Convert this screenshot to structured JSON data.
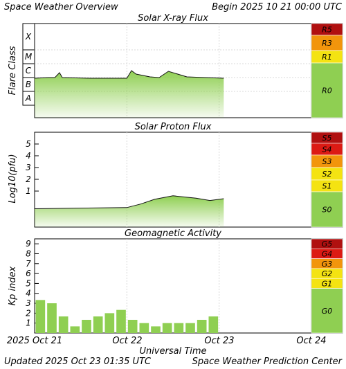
{
  "header": {
    "title": "Space Weather Overview",
    "begin": "Begin 2025 10 21 00:00 UTC"
  },
  "footer": {
    "updated": "Updated 2025 Oct 23 01:35 UTC",
    "center": "Space Weather Prediction Center"
  },
  "x_axis": {
    "title": "Universal Time",
    "ticks": [
      "2025 Oct 21",
      "Oct 22",
      "Oct 23",
      "Oct 24"
    ]
  },
  "colors": {
    "fill_green": "#8fcf52",
    "scale_green": "#8fcf52",
    "scale_yellow": "#f4e312",
    "scale_orange": "#f2950c",
    "scale_red": "#dc1a14",
    "scale_darkred": "#b01010",
    "grid": "#d8d8d8"
  },
  "chart_data": [
    {
      "type": "area",
      "title": "Solar X-ray Flux",
      "ylabel": "Flare Class",
      "y_ticks": [
        "X",
        "M",
        "C",
        "B",
        "A"
      ],
      "x_range_days": [
        0,
        3
      ],
      "x": [
        0,
        0.15,
        0.22,
        0.27,
        0.3,
        0.6,
        0.85,
        1.0,
        1.05,
        1.1,
        1.25,
        1.35,
        1.45,
        1.65,
        1.85,
        2.05
      ],
      "y": [
        1.45,
        1.5,
        1.5,
        1.85,
        1.5,
        1.45,
        1.45,
        1.45,
        2.0,
        1.75,
        1.55,
        1.5,
        1.95,
        1.55,
        1.5,
        1.45
      ],
      "scale": [
        "R5",
        "R3",
        "R1",
        "R0"
      ]
    },
    {
      "type": "area",
      "title": "Solar Proton Flux",
      "ylabel": "Log10(pfu)",
      "y_ticks": [
        "5",
        "4",
        "3",
        "2",
        "1"
      ],
      "x_range_days": [
        0,
        3
      ],
      "x": [
        0,
        0.5,
        1.0,
        1.15,
        1.3,
        1.5,
        1.75,
        1.9,
        2.05
      ],
      "y": [
        -0.5,
        -0.45,
        -0.4,
        -0.1,
        0.3,
        0.6,
        0.4,
        0.2,
        0.35
      ],
      "scale": [
        "S5",
        "S4",
        "S3",
        "S2",
        "S1",
        "S0"
      ]
    },
    {
      "type": "bar",
      "title": "Geomagnetic Activity",
      "ylabel": "Kp index",
      "y_ticks": [
        "9",
        "8",
        "7",
        "6",
        "5",
        "4",
        "3",
        "2",
        "1"
      ],
      "ylim": [
        0,
        9.5
      ],
      "bar_width_hours": 3,
      "values": [
        3.33,
        3.0,
        1.67,
        0.67,
        1.33,
        1.67,
        2.0,
        2.33,
        1.33,
        1.0,
        0.67,
        1.0,
        1.0,
        1.0,
        1.33,
        1.67
      ],
      "scale": [
        "G5",
        "G4",
        "G3",
        "G2",
        "G1",
        "G0"
      ]
    }
  ]
}
